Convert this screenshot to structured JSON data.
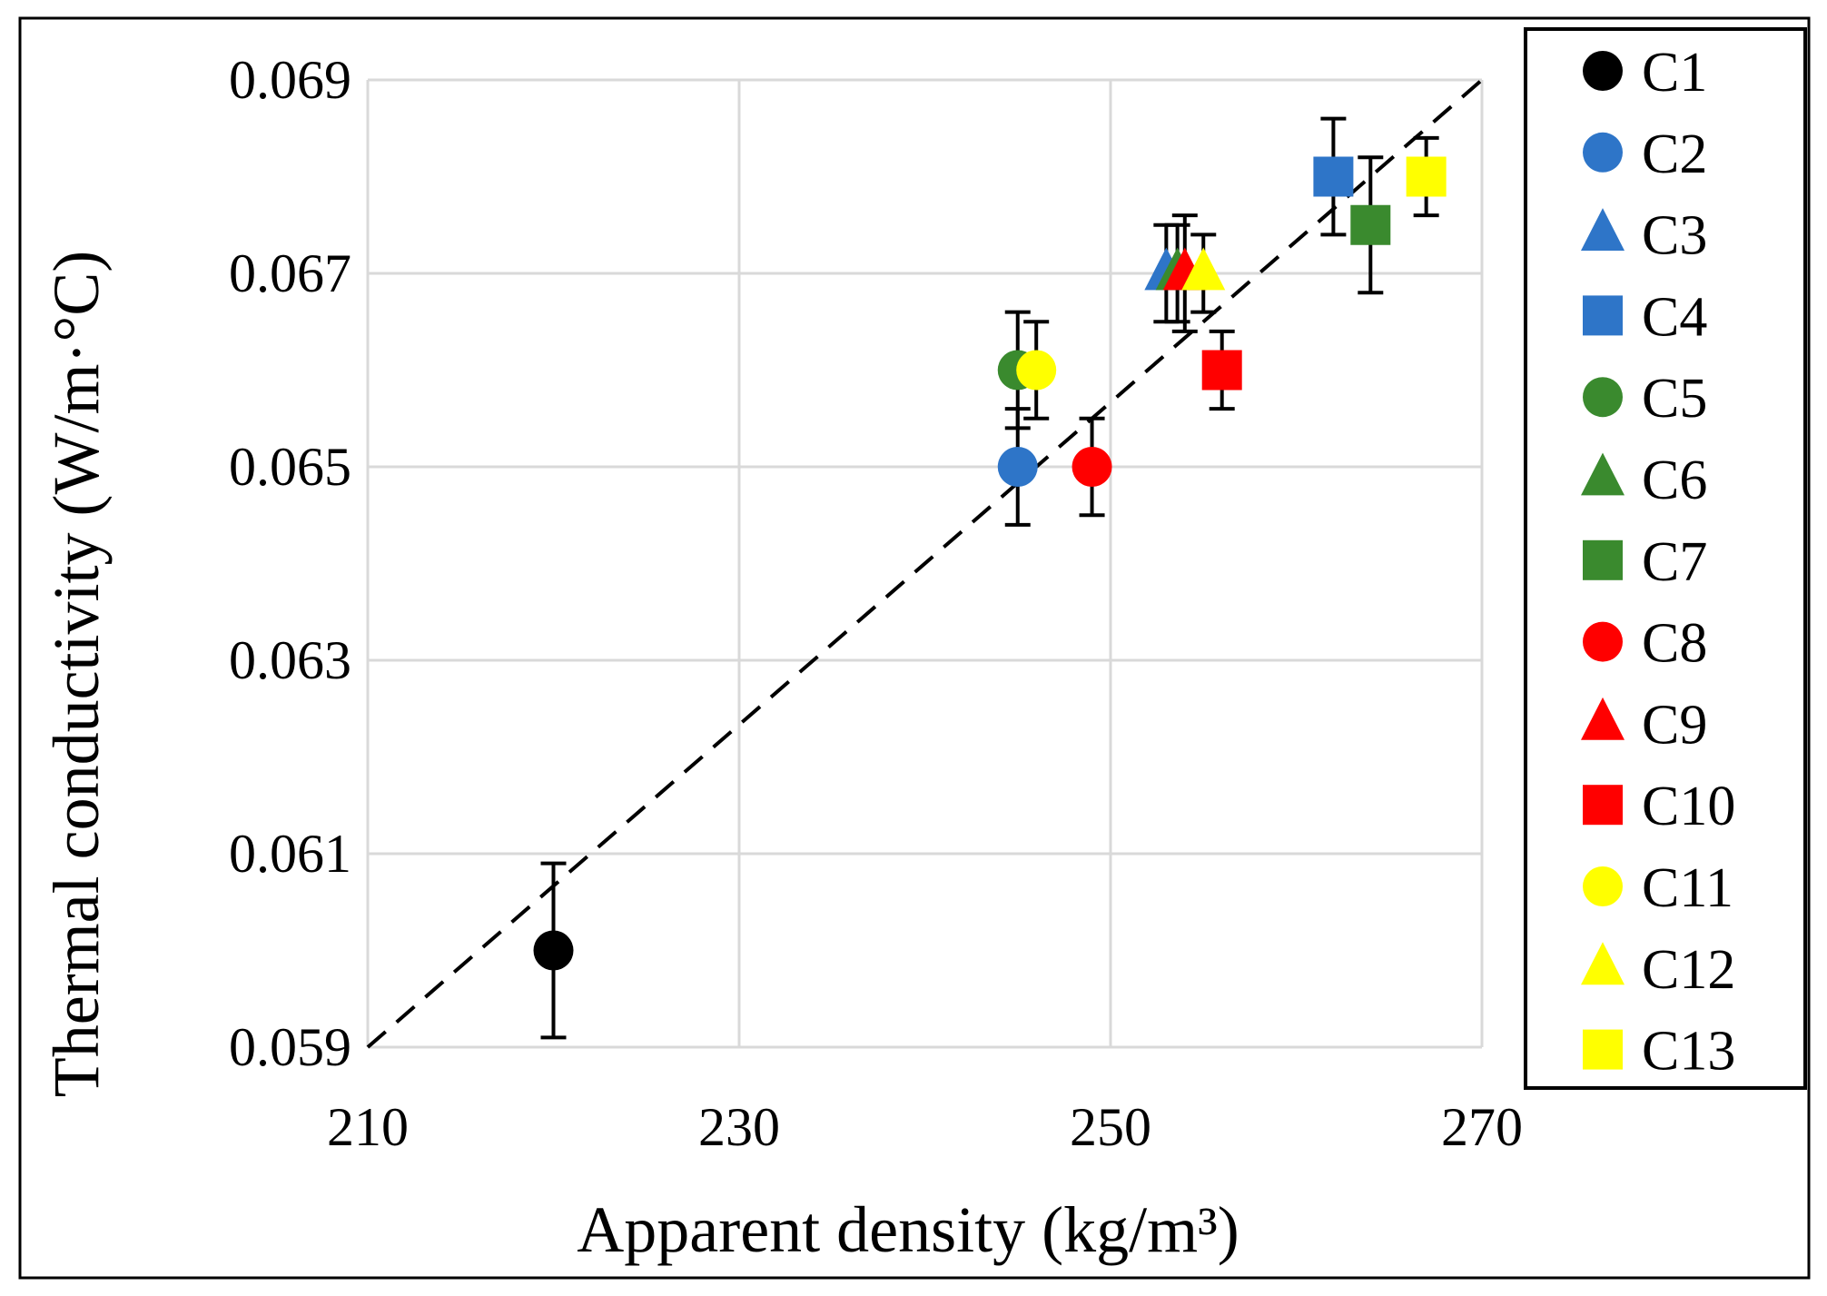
{
  "chart_data": {
    "type": "scatter",
    "xlabel": "Apparent density (kg/m³)",
    "ylabel": "Thermal conductivity (W/m·°C)",
    "xlim": [
      210,
      270
    ],
    "ylim": [
      0.059,
      0.069
    ],
    "xticks": [
      210,
      230,
      250,
      270
    ],
    "xtick_labels": [
      "210",
      "230",
      "250",
      "270"
    ],
    "yticks": [
      0.059,
      0.061,
      0.063,
      0.065,
      0.067,
      0.069
    ],
    "ytick_labels": [
      "0.059",
      "0.061",
      "0.063",
      "0.065",
      "0.067",
      "0.069"
    ],
    "grid": true,
    "legend_position": "right",
    "trendline": {
      "style": "dashed",
      "color": "#000000",
      "x": [
        210,
        270
      ],
      "y": [
        0.059,
        0.069
      ]
    },
    "series": [
      {
        "name": "C1",
        "marker": "circle",
        "color": "#000000",
        "x": 220,
        "y": 0.06,
        "err": 0.0009
      },
      {
        "name": "C2",
        "marker": "circle",
        "color": "#2E75C8",
        "x": 245,
        "y": 0.065,
        "err": 0.0006
      },
      {
        "name": "C3",
        "marker": "triangle",
        "color": "#2E75C8",
        "x": 253,
        "y": 0.067,
        "err": 0.0005
      },
      {
        "name": "C4",
        "marker": "square",
        "color": "#2E75C8",
        "x": 262,
        "y": 0.068,
        "err": 0.0006
      },
      {
        "name": "C5",
        "marker": "circle",
        "color": "#3A8A2E",
        "x": 245,
        "y": 0.066,
        "err": 0.0006
      },
      {
        "name": "C6",
        "marker": "triangle",
        "color": "#3A8A2E",
        "x": 253.6,
        "y": 0.067,
        "err": 0.0005
      },
      {
        "name": "C7",
        "marker": "square",
        "color": "#3A8A2E",
        "x": 264,
        "y": 0.0675,
        "err": 0.0007
      },
      {
        "name": "C8",
        "marker": "circle",
        "color": "#FF0000",
        "x": 249,
        "y": 0.065,
        "err": 0.0005
      },
      {
        "name": "C9",
        "marker": "triangle",
        "color": "#FF0000",
        "x": 254,
        "y": 0.067,
        "err": 0.0006
      },
      {
        "name": "C10",
        "marker": "square",
        "color": "#FF0000",
        "x": 256,
        "y": 0.066,
        "err": 0.0004
      },
      {
        "name": "C11",
        "marker": "circle",
        "color": "#FFFF00",
        "x": 246,
        "y": 0.066,
        "err": 0.0005
      },
      {
        "name": "C12",
        "marker": "triangle",
        "color": "#FFFF00",
        "x": 255,
        "y": 0.067,
        "err": 0.0004
      },
      {
        "name": "C13",
        "marker": "square",
        "color": "#FFFF00",
        "x": 267,
        "y": 0.068,
        "err": 0.0004
      }
    ]
  }
}
